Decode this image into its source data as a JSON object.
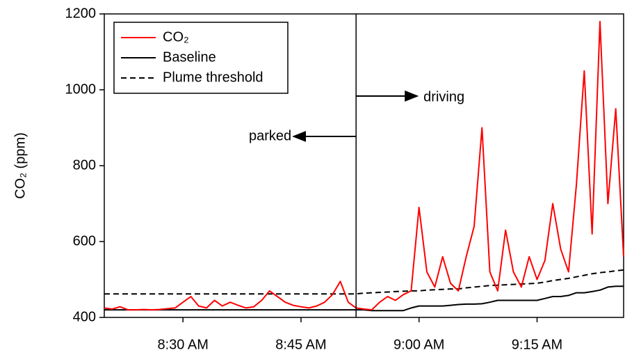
{
  "chart_data": {
    "type": "line",
    "y_label": "CO₂ (ppm)",
    "x": [
      "8:20 AM",
      "8:21 AM",
      "8:22 AM",
      "8:23 AM",
      "8:24 AM",
      "8:25 AM",
      "8:26 AM",
      "8:27 AM",
      "8:28 AM",
      "8:29 AM",
      "8:30 AM",
      "8:31 AM",
      "8:32 AM",
      "8:33 AM",
      "8:34 AM",
      "8:35 AM",
      "8:36 AM",
      "8:37 AM",
      "8:38 AM",
      "8:39 AM",
      "8:40 AM",
      "8:41 AM",
      "8:42 AM",
      "8:43 AM",
      "8:44 AM",
      "8:45 AM",
      "8:46 AM",
      "8:47 AM",
      "8:48 AM",
      "8:49 AM",
      "8:50 AM",
      "8:51 AM",
      "8:52 AM",
      "8:53 AM",
      "8:54 AM",
      "8:55 AM",
      "8:56 AM",
      "8:57 AM",
      "8:58 AM",
      "8:59 AM",
      "9:00 AM",
      "9:01 AM",
      "9:02 AM",
      "9:03 AM",
      "9:04 AM",
      "9:05 AM",
      "9:06 AM",
      "9:07 AM",
      "9:08 AM",
      "9:09 AM",
      "9:10 AM",
      "9:11 AM",
      "9:12 AM",
      "9:13 AM",
      "9:14 AM",
      "9:15 AM",
      "9:16 AM",
      "9:17 AM",
      "9:18 AM",
      "9:19 AM",
      "9:20 AM",
      "9:21 AM",
      "9:22 AM",
      "9:23 AM",
      "9:24 AM",
      "9:25 AM",
      "9:26 AM"
    ],
    "series": [
      {
        "name": "CO₂",
        "color": "#ff0000",
        "dash": false,
        "values": [
          425,
          422,
          428,
          420,
          420,
          421,
          420,
          421,
          423,
          425,
          440,
          455,
          430,
          425,
          445,
          430,
          440,
          432,
          425,
          428,
          445,
          470,
          455,
          440,
          432,
          428,
          425,
          430,
          440,
          460,
          495,
          440,
          425,
          422,
          420,
          440,
          455,
          445,
          460,
          470,
          690,
          520,
          480,
          560,
          490,
          470,
          560,
          640,
          900,
          520,
          470,
          630,
          520,
          480,
          560,
          500,
          550,
          700,
          580,
          520,
          750,
          1050,
          620,
          1180,
          700,
          950,
          560
        ]
      },
      {
        "name": "Baseline",
        "color": "#000000",
        "dash": false,
        "values": [
          420,
          420,
          420,
          420,
          420,
          420,
          420,
          420,
          420,
          420,
          420,
          420,
          420,
          420,
          420,
          420,
          420,
          420,
          420,
          420,
          420,
          420,
          420,
          420,
          420,
          420,
          420,
          420,
          420,
          420,
          420,
          420,
          420,
          420,
          418,
          418,
          418,
          418,
          418,
          425,
          430,
          430,
          430,
          430,
          432,
          434,
          435,
          435,
          436,
          440,
          445,
          445,
          445,
          445,
          445,
          445,
          450,
          455,
          455,
          458,
          465,
          465,
          468,
          472,
          480,
          482,
          482
        ]
      },
      {
        "name": "Plume threshold",
        "color": "#000000",
        "dash": true,
        "values": [
          462,
          462,
          462,
          462,
          462,
          462,
          462,
          462,
          462,
          462,
          462,
          462,
          462,
          462,
          462,
          462,
          462,
          462,
          462,
          462,
          462,
          462,
          462,
          462,
          462,
          462,
          462,
          462,
          462,
          462,
          462,
          462,
          462,
          464,
          465,
          466,
          467,
          468,
          469,
          470,
          470,
          472,
          473,
          474,
          475,
          475,
          478,
          480,
          482,
          484,
          485,
          486,
          487,
          488,
          489,
          490,
          493,
          497,
          500,
          503,
          507,
          511,
          515,
          518,
          520,
          523,
          525
        ]
      }
    ],
    "vline": "8:52 AM",
    "annotations": [
      "parked",
      "driving"
    ],
    "xlim": [
      "8:20 AM",
      "9:26 AM"
    ],
    "xticks": [
      "8:30 AM",
      "8:45 AM",
      "9:00 AM",
      "9:15 AM"
    ],
    "ylim": [
      400,
      1200
    ],
    "yticks": [
      400,
      600,
      800,
      1000,
      1200
    ],
    "legend": "upper left"
  }
}
